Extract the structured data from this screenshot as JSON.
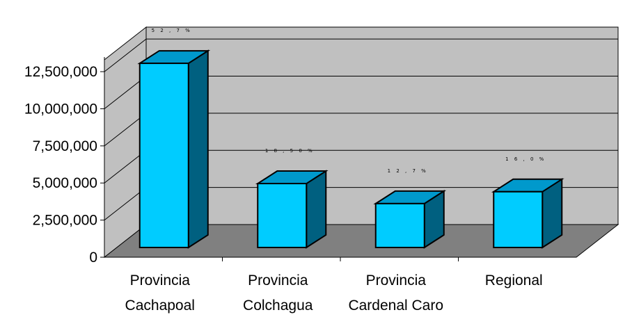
{
  "chart_data": {
    "type": "bar",
    "style": "3d-column",
    "categories": [
      [
        "Provincia",
        "Cachapoal"
      ],
      [
        "Provincia",
        "Colchagua"
      ],
      [
        "Provincia",
        "Cardenal Caro"
      ],
      [
        "Regional"
      ]
    ],
    "values": [
      12500000,
      4400000,
      3050000,
      3850000
    ],
    "data_labels": [
      "5 2 , 7 %",
      "1 8 , 5 0 %",
      "1 2 , 7 %",
      "1 6 , 0 %"
    ],
    "y_ticks": [
      "0",
      "2,500,000",
      "5,000,000",
      "7,500,000",
      "10,000,000",
      "12,500,000"
    ],
    "y_tick_values": [
      0,
      2500000,
      5000000,
      7500000,
      10000000,
      12500000
    ],
    "ylim": [
      0,
      13300000
    ],
    "title": "",
    "xlabel": "",
    "ylabel": "",
    "grid": true,
    "legend": "none",
    "colors": {
      "bar_front": "#00ccff",
      "bar_top": "#0099cc",
      "bar_side": "#006080",
      "bar_outline": "#000000",
      "back_wall": "#c0c0c0",
      "side_wall": "#c0c0c0",
      "floor": "#808080",
      "gridline": "#000000",
      "background": "#ffffff"
    }
  }
}
